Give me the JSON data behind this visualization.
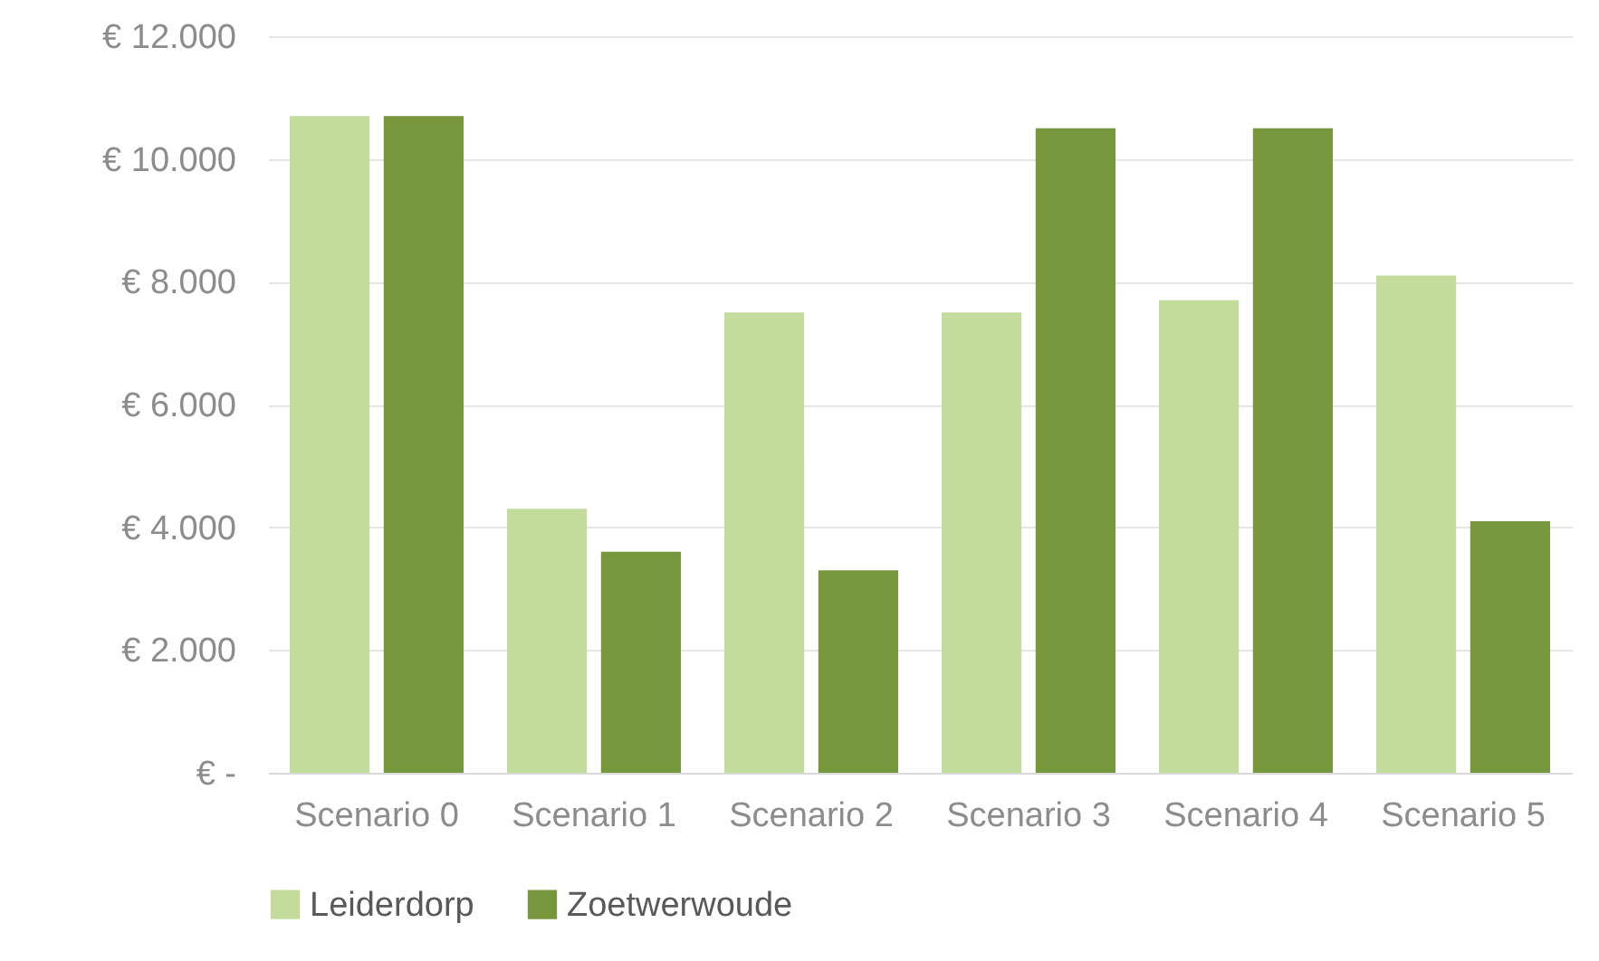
{
  "chart_data": {
    "type": "bar",
    "categories": [
      "Scenario 0",
      "Scenario 1",
      "Scenario 2",
      "Scenario 3",
      "Scenario 4",
      "Scenario 5"
    ],
    "series": [
      {
        "name": "Leiderdorp",
        "color": "#c3dc9b",
        "values": [
          10700,
          4300,
          7500,
          7500,
          7700,
          8100
        ]
      },
      {
        "name": "Zoetwerwoude",
        "color": "#77973d",
        "values": [
          10700,
          3600,
          3300,
          10500,
          10500,
          4100
        ]
      }
    ],
    "ylim": [
      0,
      12000
    ],
    "yticks": [
      {
        "value": 0,
        "label": "€ -"
      },
      {
        "value": 2000,
        "label": "€ 2.000"
      },
      {
        "value": 4000,
        "label": "€ 4.000"
      },
      {
        "value": 6000,
        "label": "€ 6.000"
      },
      {
        "value": 8000,
        "label": "€ 8.000"
      },
      {
        "value": 10000,
        "label": "€ 10.000"
      },
      {
        "value": 12000,
        "label": "€ 12.000"
      }
    ],
    "grid": "y",
    "legend": "bottom"
  }
}
